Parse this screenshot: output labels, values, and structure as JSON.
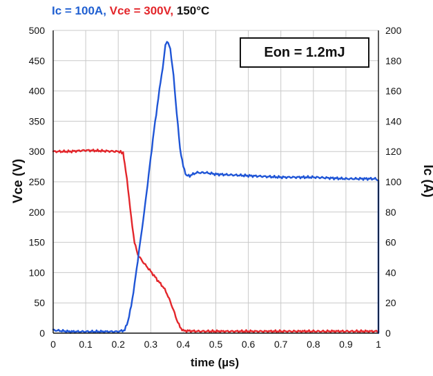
{
  "title_parts": [
    {
      "text": "Ic = 100A, ",
      "color": "#1f5fd1"
    },
    {
      "text": "Vce = 300V, ",
      "color": "#e3262b"
    },
    {
      "text": "150°C",
      "color": "#111111"
    }
  ],
  "annotation": "Eon = 1.2mJ",
  "colors": {
    "vce": "#e3262b",
    "ic": "#1f55d6",
    "axis": "#111111",
    "grid": "#c8c8c8"
  },
  "chart_data": {
    "type": "line",
    "title": "Ic = 100A, Vce = 300V, 150°C",
    "xlabel": "time (µs)",
    "ylabel": "Vce (V)",
    "y2label": "Ic (A)",
    "xlim": [
      0,
      1
    ],
    "ylim": [
      0,
      500
    ],
    "y2lim": [
      0,
      200
    ],
    "xticks": [
      "0",
      "0.1",
      "0.2",
      "0.3",
      "0.4",
      "0.5",
      "0.6",
      "0.7",
      "0.8",
      "0.9",
      "1"
    ],
    "yticks": [
      "0",
      "50",
      "100",
      "150",
      "200",
      "250",
      "300",
      "350",
      "400",
      "450",
      "500"
    ],
    "y2ticks": [
      "0",
      "20",
      "40",
      "60",
      "80",
      "100",
      "120",
      "140",
      "160",
      "180",
      "200"
    ],
    "grid": true,
    "series": [
      {
        "name": "Vce",
        "axis": "left",
        "x": [
          0,
          0.05,
          0.1,
          0.15,
          0.2,
          0.215,
          0.22,
          0.23,
          0.24,
          0.25,
          0.26,
          0.27,
          0.28,
          0.3,
          0.32,
          0.34,
          0.35,
          0.36,
          0.37,
          0.38,
          0.39,
          0.4,
          0.45,
          0.5,
          0.6,
          0.7,
          0.8,
          0.9,
          1.0
        ],
        "y": [
          300,
          300,
          302,
          301,
          300,
          298,
          280,
          240,
          190,
          150,
          130,
          122,
          115,
          102,
          88,
          75,
          65,
          52,
          38,
          22,
          10,
          4,
          3,
          3,
          3,
          3,
          3,
          3,
          3
        ]
      },
      {
        "name": "Ic",
        "axis": "right",
        "x": [
          0,
          0.05,
          0.1,
          0.15,
          0.2,
          0.22,
          0.23,
          0.24,
          0.25,
          0.26,
          0.27,
          0.28,
          0.29,
          0.3,
          0.31,
          0.32,
          0.33,
          0.34,
          0.345,
          0.35,
          0.36,
          0.37,
          0.38,
          0.39,
          0.4,
          0.41,
          0.42,
          0.44,
          0.47,
          0.5,
          0.6,
          0.7,
          0.8,
          0.9,
          0.95,
          0.99,
          1.0,
          1.0
        ],
        "y": [
          2,
          1,
          1,
          1,
          1,
          2,
          8,
          18,
          32,
          48,
          64,
          80,
          98,
          116,
          134,
          150,
          166,
          180,
          190,
          193,
          188,
          170,
          145,
          122,
          110,
          104,
          104,
          106,
          106,
          105,
          104,
          103,
          103,
          102,
          102,
          102,
          101,
          0
        ]
      }
    ]
  }
}
